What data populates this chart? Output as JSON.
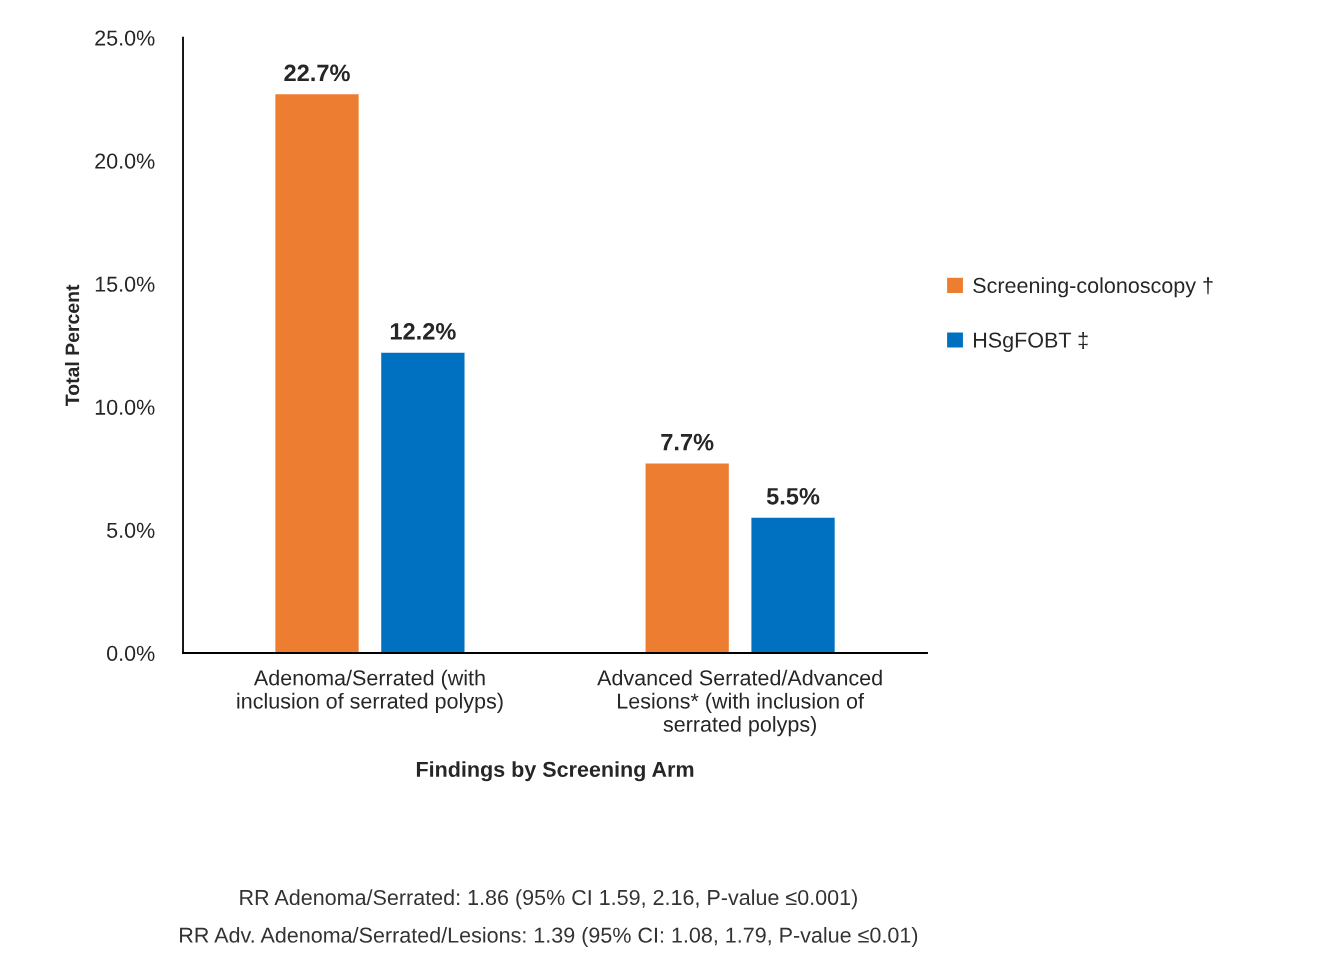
{
  "chart_data": {
    "type": "bar",
    "categories": [
      "Adenoma/Serrated (with inclusion of serrated polyps)",
      "Advanced Serrated/Advanced Lesions* (with inclusion of serrated polyps)"
    ],
    "series": [
      {
        "name": "Screening-colonoscopy †",
        "color": "#ed7d31",
        "values": [
          22.7,
          7.7
        ],
        "value_labels": [
          "22.7%",
          "7.7%"
        ]
      },
      {
        "name": "HSgFOBT ‡",
        "color": "#0070c0",
        "values": [
          12.2,
          5.5
        ],
        "value_labels": [
          "12.2%",
          "5.5%"
        ]
      }
    ],
    "xlabel": "Findings by Screening Arm",
    "ylabel": "Total Percent",
    "ylim": [
      0,
      25
    ],
    "yticks": [
      {
        "value": 0,
        "label": "0.0%"
      },
      {
        "value": 5,
        "label": "5.0%"
      },
      {
        "value": 10,
        "label": "10.0%"
      },
      {
        "value": 15,
        "label": "15.0%"
      },
      {
        "value": 20,
        "label": "20.0%"
      },
      {
        "value": 25,
        "label": "25.0%"
      }
    ],
    "grid": false,
    "legend": "right",
    "annotations": [
      "RR Adenoma/Serrated: 1.86 (95% CI 1.59, 2.16, P-value ≤0.001)",
      "RR Adv. Adenoma/Serrated/Lesions: 1.39 (95% CI: 1.08, 1.79, P-value ≤0.01)"
    ]
  }
}
